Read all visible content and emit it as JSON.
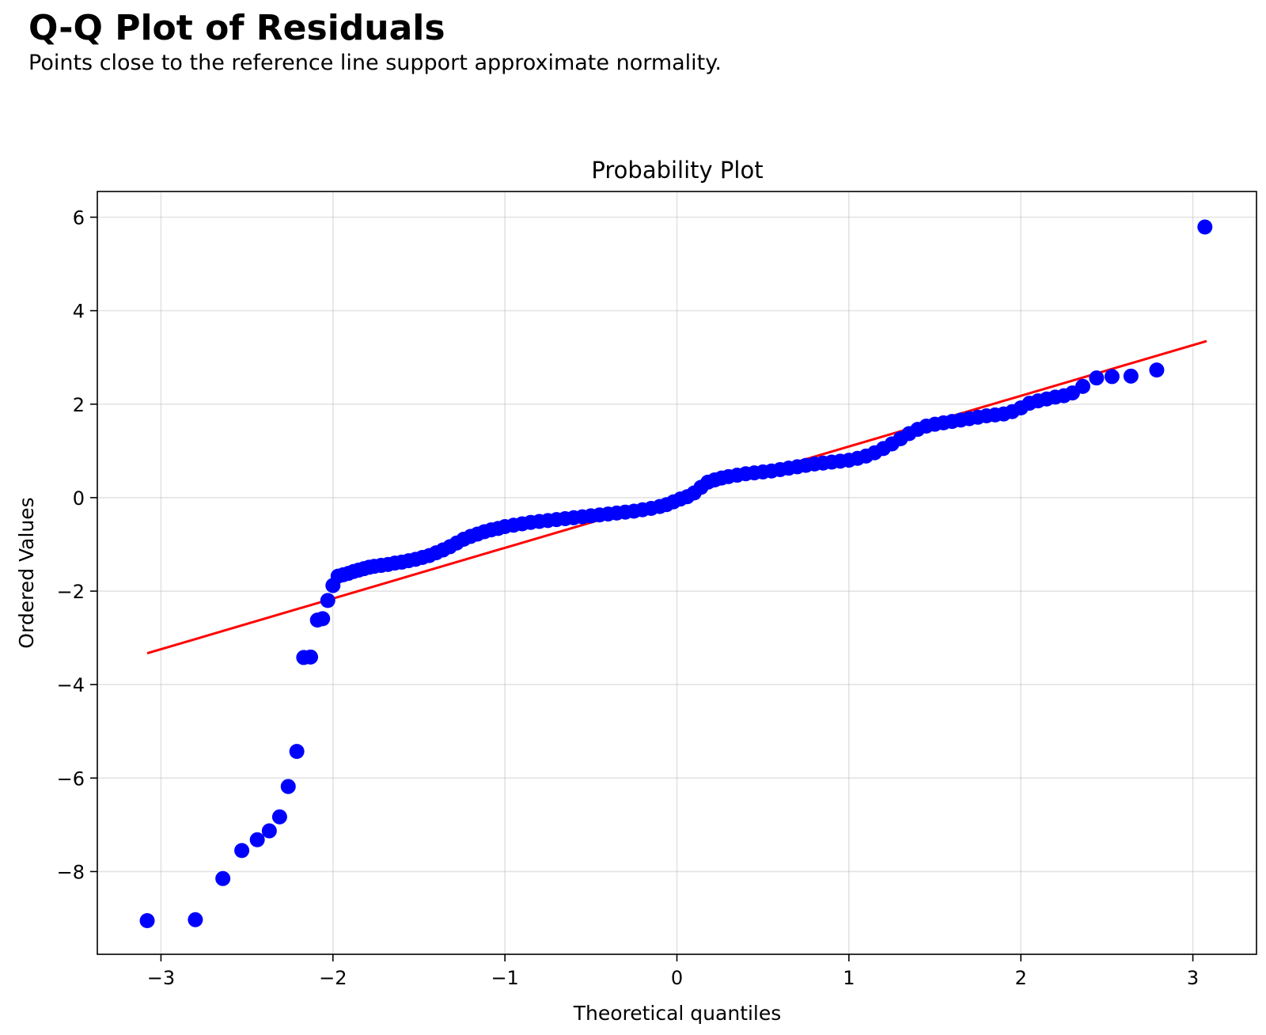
{
  "page": {
    "title": "Q-Q Plot of Residuals",
    "subtitle": "Points close to the reference line support approximate normality."
  },
  "chart_data": {
    "type": "scatter",
    "title": "Probability Plot",
    "xlabel": "Theoretical quantiles",
    "ylabel": "Ordered Values",
    "xlim": [
      -3.37,
      3.37
    ],
    "ylim": [
      -9.77,
      6.55
    ],
    "xticks": [
      -3,
      -2,
      -1,
      0,
      1,
      2,
      3
    ],
    "yticks": [
      -8,
      -6,
      -4,
      -2,
      0,
      2,
      4,
      6
    ],
    "grid": true,
    "marker_color": "#0000ff",
    "line_color": "#ff0000",
    "reference_line": {
      "x": [
        -3.08,
        3.08
      ],
      "y": [
        -3.33,
        3.35
      ]
    },
    "series": [
      {
        "points": [
          [
            -3.08,
            -9.05
          ],
          [
            -2.8,
            -9.03
          ],
          [
            -2.64,
            -8.15
          ],
          [
            -2.53,
            -7.55
          ],
          [
            -2.44,
            -7.32
          ],
          [
            -2.37,
            -7.13
          ],
          [
            -2.31,
            -6.83
          ],
          [
            -2.26,
            -6.18
          ],
          [
            -2.21,
            -5.43
          ],
          [
            -2.17,
            -3.42
          ],
          [
            -2.13,
            -3.41
          ],
          [
            -2.09,
            -2.62
          ],
          [
            -2.06,
            -2.59
          ],
          [
            -2.03,
            -2.2
          ],
          [
            -2.0,
            -1.88
          ],
          [
            -1.97,
            -1.68
          ],
          [
            -1.94,
            -1.65
          ],
          [
            -1.91,
            -1.62
          ],
          [
            -1.88,
            -1.58
          ],
          [
            -1.85,
            -1.55
          ],
          [
            -1.82,
            -1.52
          ],
          [
            -1.79,
            -1.49
          ],
          [
            -1.76,
            -1.47
          ],
          [
            -1.72,
            -1.45
          ],
          [
            -1.68,
            -1.43
          ],
          [
            -1.64,
            -1.4
          ],
          [
            -1.6,
            -1.38
          ],
          [
            -1.56,
            -1.35
          ],
          [
            -1.52,
            -1.32
          ],
          [
            -1.48,
            -1.28
          ],
          [
            -1.44,
            -1.24
          ],
          [
            -1.4,
            -1.18
          ],
          [
            -1.36,
            -1.12
          ],
          [
            -1.32,
            -1.05
          ],
          [
            -1.28,
            -0.97
          ],
          [
            -1.24,
            -0.89
          ],
          [
            -1.2,
            -0.83
          ],
          [
            -1.16,
            -0.78
          ],
          [
            -1.12,
            -0.73
          ],
          [
            -1.08,
            -0.69
          ],
          [
            -1.04,
            -0.66
          ],
          [
            -1.0,
            -0.62
          ],
          [
            -0.95,
            -0.59
          ],
          [
            -0.9,
            -0.56
          ],
          [
            -0.85,
            -0.53
          ],
          [
            -0.8,
            -0.51
          ],
          [
            -0.75,
            -0.49
          ],
          [
            -0.7,
            -0.47
          ],
          [
            -0.65,
            -0.45
          ],
          [
            -0.6,
            -0.43
          ],
          [
            -0.55,
            -0.41
          ],
          [
            -0.5,
            -0.39
          ],
          [
            -0.45,
            -0.37
          ],
          [
            -0.4,
            -0.35
          ],
          [
            -0.35,
            -0.33
          ],
          [
            -0.3,
            -0.31
          ],
          [
            -0.25,
            -0.29
          ],
          [
            -0.2,
            -0.26
          ],
          [
            -0.15,
            -0.23
          ],
          [
            -0.1,
            -0.19
          ],
          [
            -0.06,
            -0.15
          ],
          [
            -0.02,
            -0.09
          ],
          [
            0.02,
            -0.03
          ],
          [
            0.06,
            0.02
          ],
          [
            0.1,
            0.1
          ],
          [
            0.14,
            0.22
          ],
          [
            0.18,
            0.33
          ],
          [
            0.22,
            0.38
          ],
          [
            0.26,
            0.42
          ],
          [
            0.3,
            0.45
          ],
          [
            0.35,
            0.48
          ],
          [
            0.4,
            0.51
          ],
          [
            0.45,
            0.53
          ],
          [
            0.5,
            0.55
          ],
          [
            0.55,
            0.57
          ],
          [
            0.6,
            0.6
          ],
          [
            0.65,
            0.63
          ],
          [
            0.7,
            0.66
          ],
          [
            0.75,
            0.69
          ],
          [
            0.8,
            0.72
          ],
          [
            0.85,
            0.74
          ],
          [
            0.9,
            0.76
          ],
          [
            0.95,
            0.78
          ],
          [
            1.0,
            0.8
          ],
          [
            1.05,
            0.84
          ],
          [
            1.1,
            0.89
          ],
          [
            1.15,
            0.96
          ],
          [
            1.2,
            1.05
          ],
          [
            1.25,
            1.15
          ],
          [
            1.3,
            1.26
          ],
          [
            1.35,
            1.37
          ],
          [
            1.4,
            1.46
          ],
          [
            1.45,
            1.53
          ],
          [
            1.5,
            1.57
          ],
          [
            1.55,
            1.6
          ],
          [
            1.6,
            1.63
          ],
          [
            1.65,
            1.66
          ],
          [
            1.7,
            1.69
          ],
          [
            1.75,
            1.72
          ],
          [
            1.8,
            1.75
          ],
          [
            1.85,
            1.77
          ],
          [
            1.9,
            1.79
          ],
          [
            1.95,
            1.84
          ],
          [
            2.0,
            1.92
          ],
          [
            2.05,
            2.02
          ],
          [
            2.1,
            2.07
          ],
          [
            2.15,
            2.11
          ],
          [
            2.2,
            2.15
          ],
          [
            2.25,
            2.18
          ],
          [
            2.3,
            2.24
          ],
          [
            2.36,
            2.38
          ],
          [
            2.44,
            2.56
          ],
          [
            2.53,
            2.59
          ],
          [
            2.64,
            2.6
          ],
          [
            2.79,
            2.73
          ],
          [
            3.07,
            5.79
          ]
        ]
      }
    ]
  }
}
